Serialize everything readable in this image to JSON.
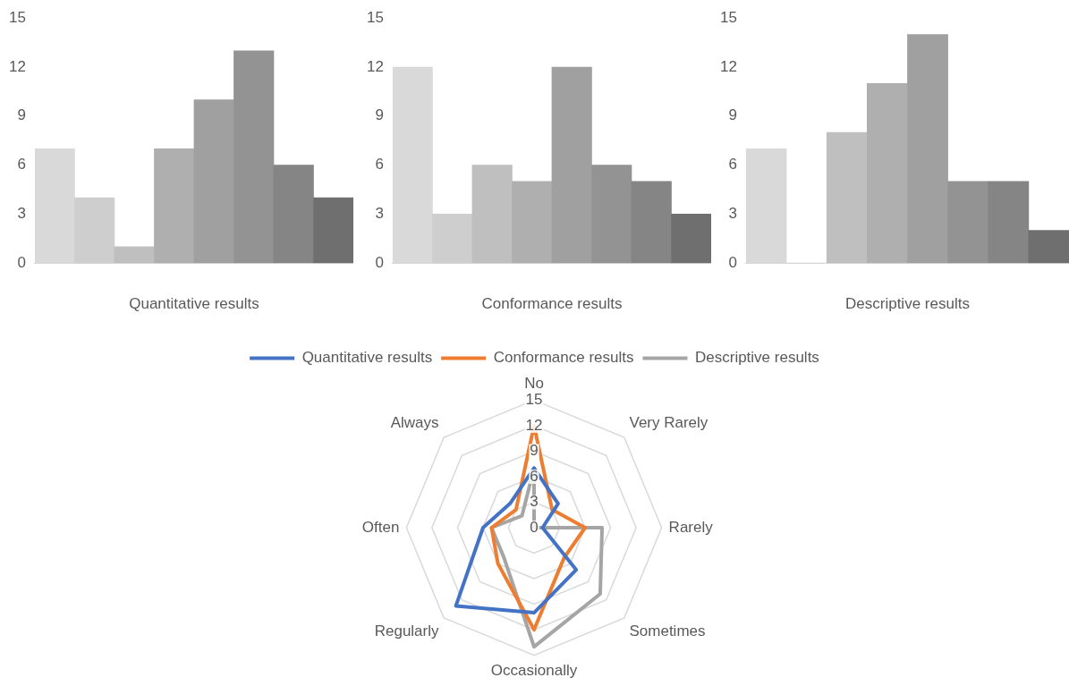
{
  "chart_data": [
    {
      "type": "bar",
      "xlabel": "Quantitative results",
      "categories": [
        null,
        null,
        null,
        null,
        null,
        null,
        null,
        null
      ],
      "values": [
        7,
        4,
        1,
        7,
        10,
        13,
        6,
        4
      ],
      "colors": [
        "#d9d9d9",
        "#cecece",
        "#bfbfbf",
        "#afafaf",
        "#a0a0a0",
        "#939393",
        "#858585",
        "#6f6f6f"
      ],
      "ylim": [
        0,
        15
      ],
      "yticks": [
        0,
        3,
        6,
        9,
        12,
        15
      ]
    },
    {
      "type": "bar",
      "xlabel": "Conformance results",
      "categories": [
        null,
        null,
        null,
        null,
        null,
        null,
        null,
        null
      ],
      "values": [
        12,
        3,
        6,
        5,
        12,
        6,
        5,
        3
      ],
      "colors": [
        "#d9d9d9",
        "#cecece",
        "#bfbfbf",
        "#afafaf",
        "#a0a0a0",
        "#939393",
        "#858585",
        "#6f6f6f"
      ],
      "ylim": [
        0,
        15
      ],
      "yticks": [
        0,
        3,
        6,
        9,
        12,
        15
      ]
    },
    {
      "type": "bar",
      "xlabel": "Descriptive results",
      "categories": [
        null,
        null,
        null,
        null,
        null,
        null,
        null,
        null
      ],
      "values": [
        7,
        0,
        8,
        11,
        14,
        5,
        5,
        2
      ],
      "colors": [
        "#d9d9d9",
        "#cecece",
        "#bfbfbf",
        "#afafaf",
        "#a0a0a0",
        "#939393",
        "#858585",
        "#6f6f6f"
      ],
      "ylim": [
        0,
        15
      ],
      "yticks": [
        0,
        3,
        6,
        9,
        12,
        15
      ]
    },
    {
      "type": "radar",
      "categories": [
        "No",
        "Very Rarely",
        "Rarely",
        "Sometimes",
        "Occasionally",
        "Regularly",
        "Often",
        "Always"
      ],
      "series": [
        {
          "name": "Quantitative results",
          "color": "#4472c4",
          "values": [
            7,
            4,
            1,
            7,
            10,
            13,
            6,
            4
          ]
        },
        {
          "name": "Conformance results",
          "color": "#ed7d31",
          "values": [
            12,
            3,
            6,
            5,
            12,
            6,
            5,
            3
          ]
        },
        {
          "name": "Descriptive results",
          "color": "#a5a5a5",
          "values": [
            7,
            0,
            8,
            11,
            14,
            5,
            5,
            2
          ]
        }
      ],
      "ylim": [
        0,
        15
      ],
      "yticks": [
        0,
        3,
        6,
        9,
        12,
        15
      ],
      "grid": true,
      "legend": "top",
      "marker": "none"
    }
  ]
}
